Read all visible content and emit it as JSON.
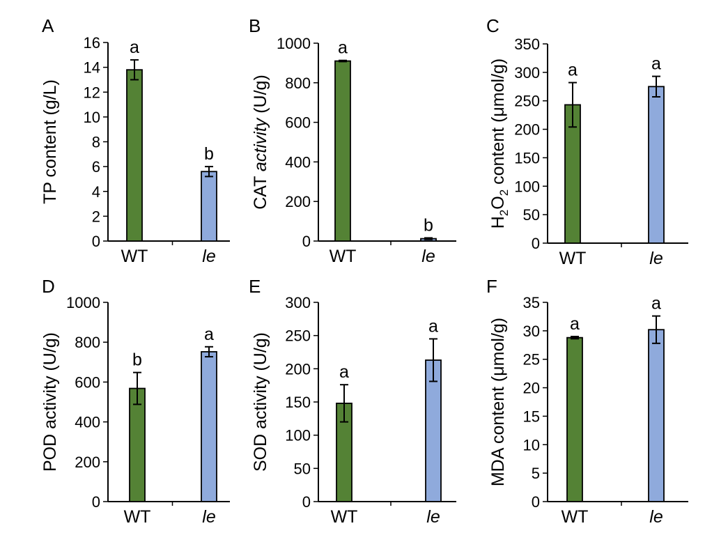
{
  "colors": {
    "WT": "#548235",
    "le": "#8faadc",
    "axis": "#000000"
  },
  "chart_data": [
    {
      "panel": "A",
      "type": "bar",
      "categories": [
        "WT",
        "le"
      ],
      "values": [
        13.8,
        5.6
      ],
      "errors": [
        0.8,
        0.4
      ],
      "significance": [
        "a",
        "b"
      ],
      "ylabel": "TP content (g/L)",
      "ylim": [
        0,
        16
      ],
      "yticks": [
        0,
        2,
        4,
        6,
        8,
        10,
        12,
        14,
        16
      ]
    },
    {
      "panel": "B",
      "type": "bar",
      "categories": [
        "WT",
        "le"
      ],
      "values": [
        910,
        12
      ],
      "errors": [
        3,
        4
      ],
      "significance": [
        "a",
        "b"
      ],
      "ylabel": "CAT activity (U/g)",
      "ylim": [
        0,
        1000
      ],
      "yticks": [
        0,
        200,
        400,
        600,
        800,
        1000
      ]
    },
    {
      "panel": "C",
      "type": "bar",
      "categories": [
        "WT",
        "le"
      ],
      "values": [
        243,
        275
      ],
      "errors": [
        39,
        18
      ],
      "significance": [
        "a",
        "a"
      ],
      "ylabel": "H2O2 content (μmol/g)",
      "ylim": [
        0,
        350
      ],
      "yticks": [
        0,
        50,
        100,
        150,
        200,
        250,
        300,
        350
      ]
    },
    {
      "panel": "D",
      "type": "bar",
      "categories": [
        "WT",
        "le"
      ],
      "values": [
        568,
        752
      ],
      "errors": [
        80,
        25
      ],
      "significance": [
        "b",
        "a"
      ],
      "ylabel": "POD activity (U/g)",
      "ylim": [
        0,
        1000
      ],
      "yticks": [
        0,
        200,
        400,
        600,
        800,
        1000
      ]
    },
    {
      "panel": "E",
      "type": "bar",
      "categories": [
        "WT",
        "le"
      ],
      "values": [
        148,
        213
      ],
      "errors": [
        28,
        32
      ],
      "significance": [
        "a",
        "a"
      ],
      "ylabel": "SOD activity (U/g)",
      "ylim": [
        0,
        300
      ],
      "yticks": [
        0,
        50,
        100,
        150,
        200,
        250,
        300
      ]
    },
    {
      "panel": "F",
      "type": "bar",
      "categories": [
        "WT",
        "le"
      ],
      "values": [
        28.8,
        30.2
      ],
      "errors": [
        0.2,
        2.4
      ],
      "significance": [
        "a",
        "a"
      ],
      "ylabel": "MDA content (μmol/g)",
      "ylim": [
        0,
        35
      ],
      "yticks": [
        0,
        5,
        10,
        15,
        20,
        25,
        30,
        35
      ]
    }
  ]
}
